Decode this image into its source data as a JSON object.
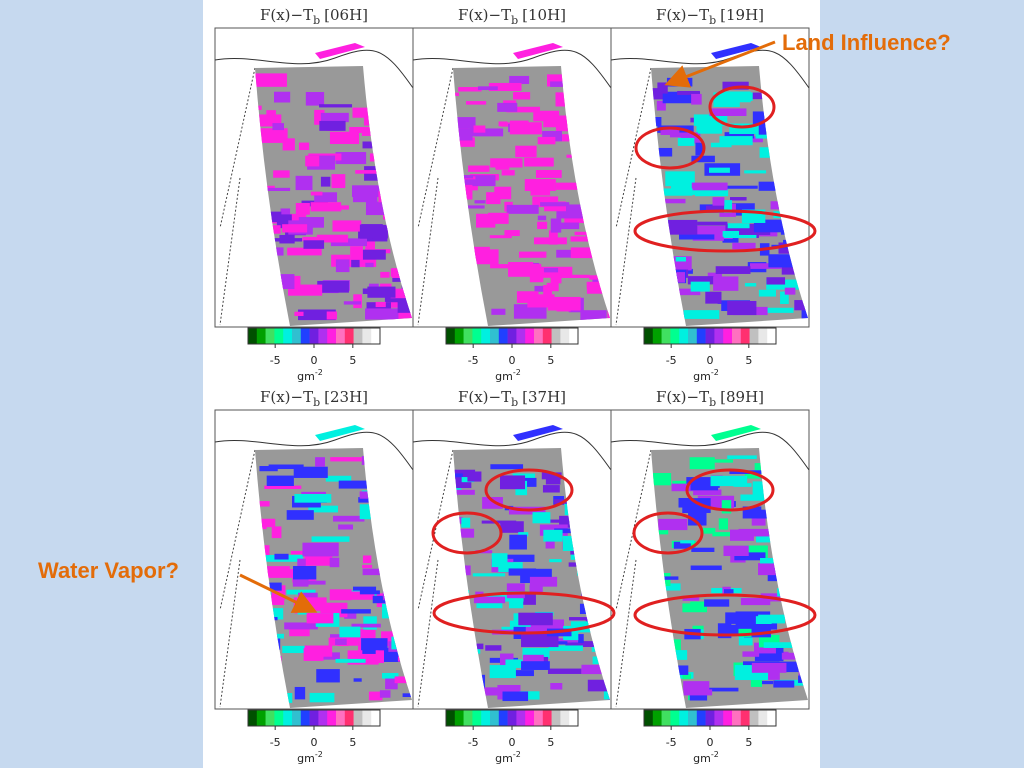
{
  "panels": [
    {
      "prefix": "F(x)−T",
      "sub": "b",
      "channel": "[06H]"
    },
    {
      "prefix": "F(x)−T",
      "sub": "b",
      "channel": "[10H]"
    },
    {
      "prefix": "F(x)−T",
      "sub": "b",
      "channel": "[19H]"
    },
    {
      "prefix": "F(x)−T",
      "sub": "b",
      "channel": "[23H]"
    },
    {
      "prefix": "F(x)−T",
      "sub": "b",
      "channel": "[37H]"
    },
    {
      "prefix": "F(x)−T",
      "sub": "b",
      "channel": "[89H]"
    }
  ],
  "colorbar": {
    "range": [
      -8.5,
      8.5
    ],
    "ticks": [
      -5,
      0,
      5
    ],
    "unit": "gm",
    "unit_exp": "-2",
    "colors": [
      "#005000",
      "#00a000",
      "#40e060",
      "#00ff90",
      "#00f0e0",
      "#30c0d0",
      "#2040ff",
      "#7020e0",
      "#b030f0",
      "#ff20e0",
      "#ff70c0",
      "#ff3070",
      "#c0c0c0",
      "#e8e8e8",
      "#ffffff"
    ]
  },
  "annotations": {
    "land": "Land Influence?",
    "vapor": "Water Vapor?"
  }
}
